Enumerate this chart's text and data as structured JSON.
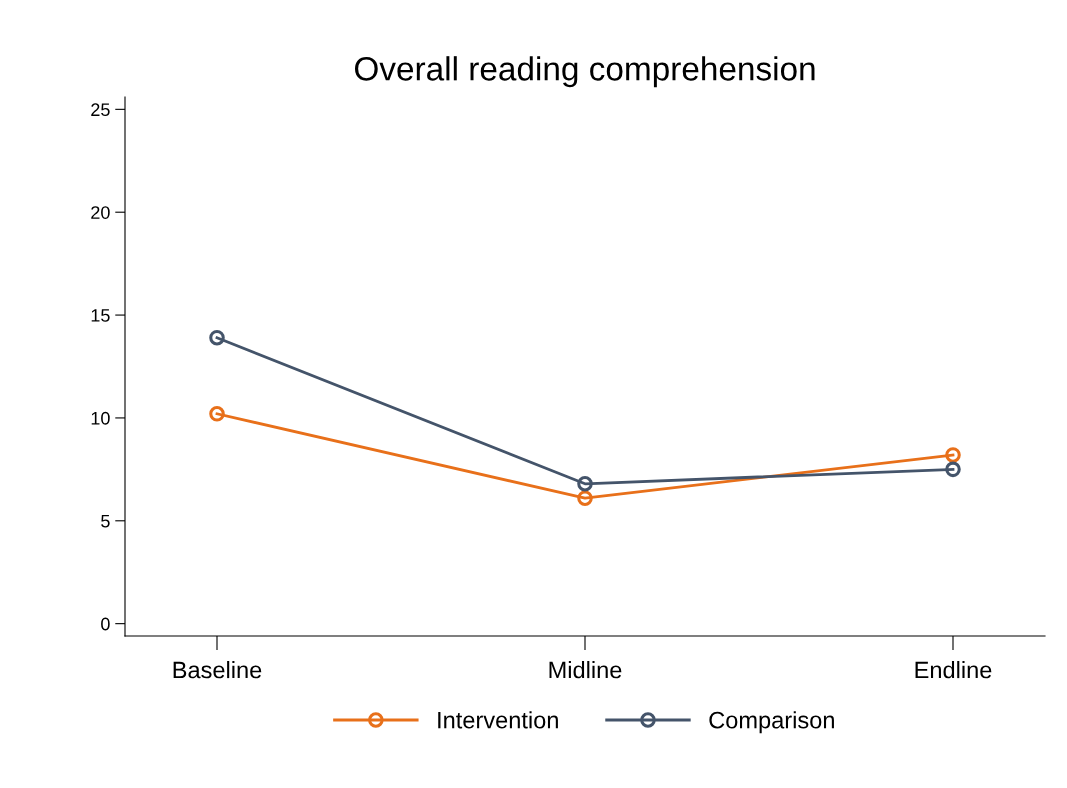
{
  "chart_data": {
    "type": "line",
    "title": "Overall reading comprehension",
    "categories": [
      "Baseline",
      "Midline",
      "Endline"
    ],
    "series": [
      {
        "name": "Intervention",
        "color": "#e8701a",
        "values": [
          10.2,
          6.1,
          8.2
        ]
      },
      {
        "name": "Comparison",
        "color": "#44546a",
        "values": [
          13.9,
          6.8,
          7.5
        ]
      }
    ],
    "ylim": [
      -0.6,
      25.6
    ],
    "yticks": [
      0,
      5,
      10,
      15,
      20,
      25
    ],
    "grid": false,
    "legend": "bottom",
    "marker": "circle",
    "line_style": "solid"
  }
}
